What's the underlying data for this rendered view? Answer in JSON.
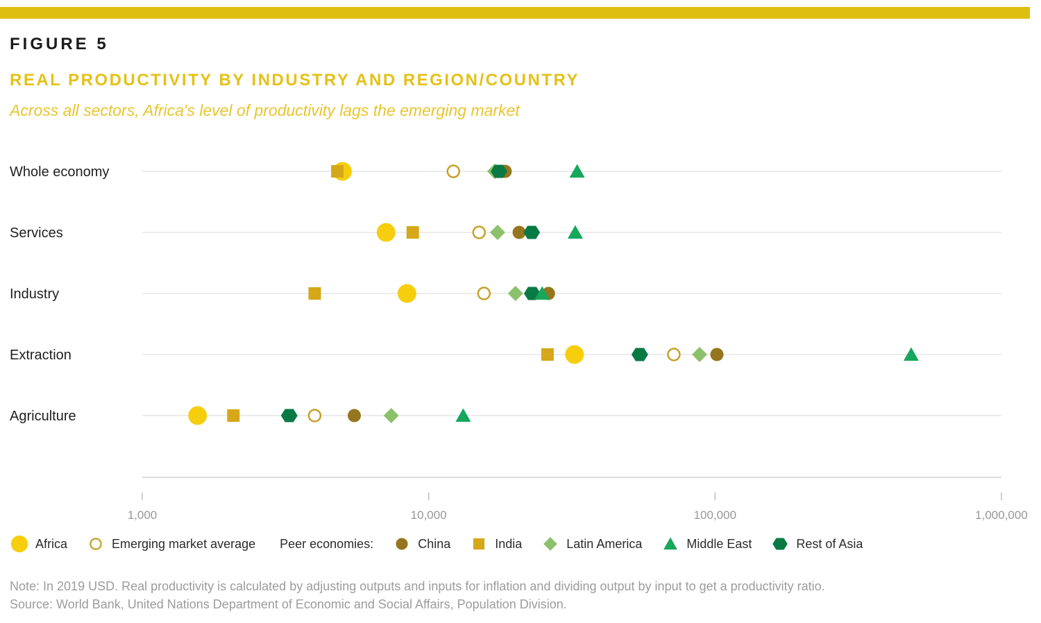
{
  "header": {
    "figure_label": "FIGURE 5",
    "title": "REAL PRODUCTIVITY BY INDUSTRY AND REGION/COUNTRY",
    "subtitle": "Across all sectors, Africa's level of productivity lags the emerging market",
    "accent_color": "#DFBE12"
  },
  "chart_data": {
    "type": "scatter",
    "x_scale": "log",
    "xlim": [
      1000,
      1000000
    ],
    "x_tick_values": [
      1000,
      10000,
      100000,
      1000000
    ],
    "x_tick_labels": [
      "1,000",
      "10,000",
      "100,000",
      "1,000,000"
    ],
    "categories": [
      "Whole economy",
      "Services",
      "Industry",
      "Extraction",
      "Agriculture"
    ],
    "grid": "horizontal-category-lines",
    "units": "2019 USD, real productivity ratio",
    "series": [
      {
        "name": "Africa",
        "marker": "circle-large",
        "color": "#F7CE0D",
        "values": [
          5000,
          7100,
          8400,
          32300,
          1560
        ]
      },
      {
        "name": "India",
        "marker": "square",
        "color": "#D6A819",
        "values": [
          4800,
          8800,
          4000,
          26000,
          2080
        ]
      },
      {
        "name": "Emerging market average",
        "marker": "open-circle",
        "color": "#C7A029",
        "values": [
          12200,
          15000,
          15600,
          71800,
          4000
        ]
      },
      {
        "name": "Latin America",
        "marker": "diamond",
        "color": "#8CC16C",
        "values": [
          17000,
          17400,
          20100,
          88300,
          7400
        ]
      },
      {
        "name": "China",
        "marker": "circle",
        "color": "#95761E",
        "values": [
          18500,
          20700,
          26200,
          101500,
          5500
        ]
      },
      {
        "name": "Rest of Asia",
        "marker": "hexagon",
        "color": "#0A7A44",
        "values": [
          17600,
          22900,
          23000,
          54600,
          3260
        ]
      },
      {
        "name": "Middle East",
        "marker": "triangle",
        "color": "#16A75C",
        "values": [
          33000,
          32500,
          24900,
          484000,
          13200
        ]
      }
    ]
  },
  "legend": {
    "lead_items": [
      "Africa",
      "Emerging market average"
    ],
    "peer_label": "Peer economies:",
    "peer_items": [
      "China",
      "India",
      "Latin America",
      "Middle East",
      "Rest of Asia"
    ]
  },
  "notes": {
    "note": "Note: In 2019 USD. Real productivity is calculated by adjusting outputs and inputs for inflation and dividing output by input to get a productivity ratio.",
    "source": "Source: World Bank, United Nations Department of Economic and Social Affairs, Population Division."
  }
}
